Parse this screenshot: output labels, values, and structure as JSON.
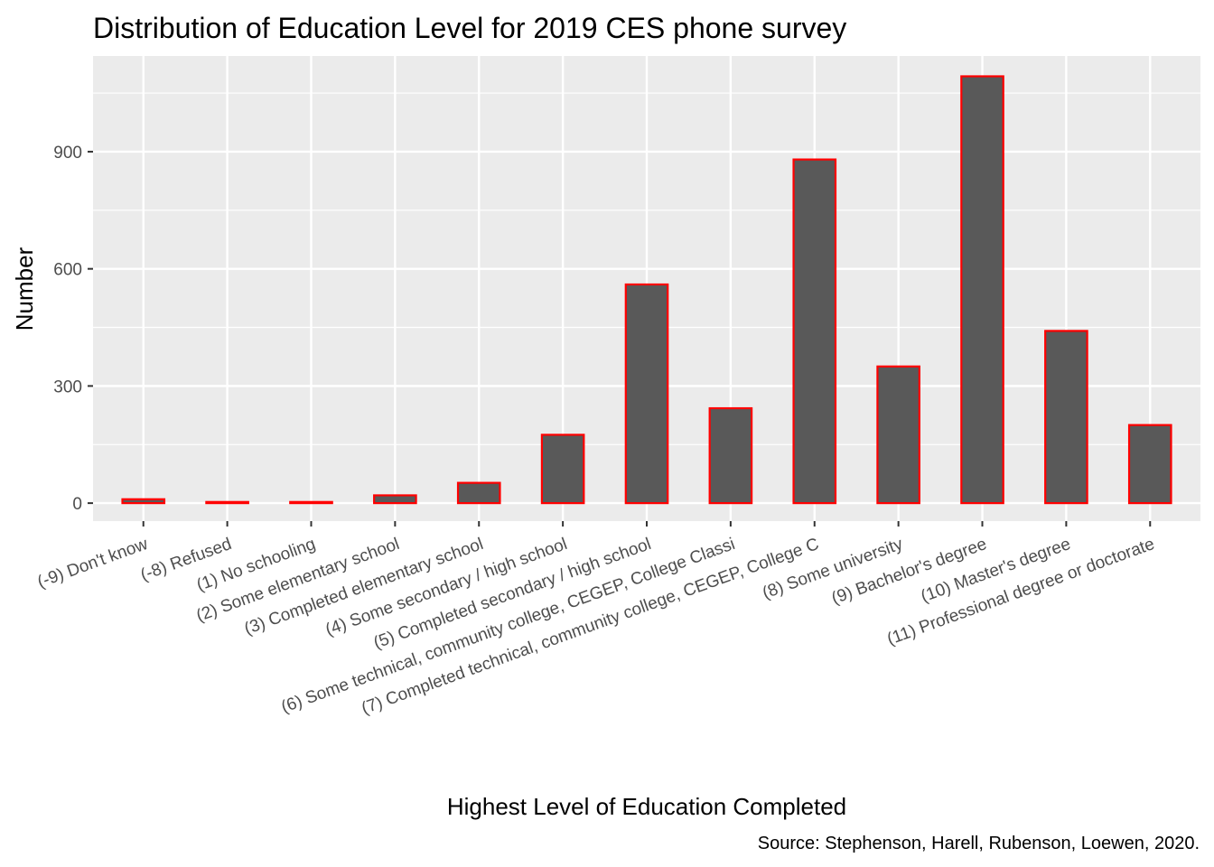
{
  "chart_data": {
    "type": "bar",
    "title": "Distribution of Education Level for 2019 CES phone survey",
    "xlabel": "Highest Level of Education Completed",
    "ylabel": "Number",
    "caption": "Source: Stephenson, Harell, Rubenson, Loewen, 2020.",
    "categories": [
      "(-9) Don't know",
      "(-8) Refused",
      "(1) No schooling",
      "(2) Some elementary school",
      "(3) Completed elementary school",
      "(4) Some secondary / high school",
      "(5) Completed secondary / high school",
      "(6) Some technical, community college, CEGEP, College Classi",
      "(7) Completed technical, community college, CEGEP, College C",
      "(8) Some university",
      "(9) Bachelor's degree",
      "(10) Master's degree",
      "(11) Professional degree or doctorate"
    ],
    "values": [
      10,
      3,
      3,
      20,
      52,
      175,
      560,
      243,
      880,
      350,
      1093,
      441,
      200
    ],
    "ylim": [
      -46,
      1145
    ],
    "yticks": [
      0,
      300,
      600,
      900
    ],
    "ytick_labels": [
      "0",
      "300",
      "600",
      "900"
    ],
    "grid": true,
    "bar_fill": "#595959",
    "bar_outline": "#ff0000",
    "panel_background": "#ebebeb",
    "gridline_color": "#ffffff"
  }
}
